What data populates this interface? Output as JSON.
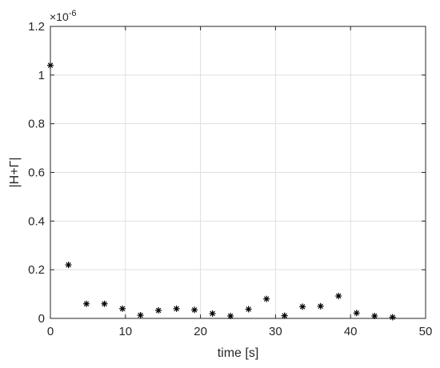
{
  "chart_data": {
    "type": "scatter",
    "xlabel": "time [s]",
    "ylabel": "|H+Γ|",
    "y_exponent_label": "×10",
    "y_exponent_power": "-6",
    "xlim": [
      0,
      50
    ],
    "ylim": [
      0,
      1.2
    ],
    "grid": true,
    "x_ticks": [
      0,
      10,
      20,
      30,
      40,
      50
    ],
    "x_tick_labels": [
      "0",
      "10",
      "20",
      "30",
      "40",
      "50"
    ],
    "y_ticks": [
      0,
      0.2,
      0.4,
      0.6,
      0.8,
      1.0,
      1.2
    ],
    "y_tick_labels": [
      "0",
      "0.2",
      "0.4",
      "0.6",
      "0.8",
      "1",
      "1.2"
    ],
    "marker": "asterisk",
    "marker_color": "#000000",
    "series": [
      {
        "x": [
          0,
          2.4,
          4.8,
          7.2,
          9.6,
          12.0,
          14.4,
          16.8,
          19.2,
          21.6,
          24.0,
          26.4,
          28.8,
          31.2,
          33.6,
          36.0,
          38.4,
          40.8,
          43.2,
          45.6
        ],
        "y": [
          1.04,
          0.22,
          0.06,
          0.06,
          0.04,
          0.013,
          0.033,
          0.04,
          0.035,
          0.02,
          0.01,
          0.038,
          0.08,
          0.011,
          0.048,
          0.05,
          0.092,
          0.022,
          0.01,
          0.005
        ]
      }
    ]
  }
}
